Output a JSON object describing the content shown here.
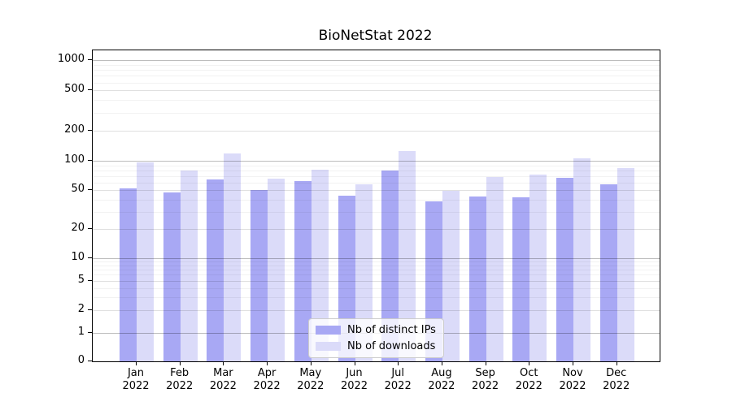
{
  "title": "BioNetStat 2022",
  "chart_data": {
    "type": "bar",
    "title": "BioNetStat 2022",
    "categories": [
      "Jan 2022",
      "Feb 2022",
      "Mar 2022",
      "Apr 2022",
      "May 2022",
      "Jun 2022",
      "Jul 2022",
      "Aug 2022",
      "Sep 2022",
      "Oct 2022",
      "Nov 2022",
      "Dec 2022"
    ],
    "series": [
      {
        "name": "Nb of distinct IPs",
        "color": "#a8a8f4",
        "values": [
          52,
          47,
          65,
          50,
          62,
          44,
          79,
          38,
          43,
          42,
          67,
          57
        ]
      },
      {
        "name": "Nb of downloads",
        "color": "#dbdbf9",
        "values": [
          97,
          79,
          118,
          66,
          81,
          57,
          126,
          49,
          68,
          72,
          106,
          85
        ]
      }
    ],
    "yscale": "symlog",
    "yticks": [
      0,
      1,
      2,
      5,
      10,
      20,
      50,
      100,
      200,
      500,
      1000
    ],
    "ytick_labels": [
      "0",
      "1",
      "2",
      "5",
      "10",
      "20",
      "50",
      "100",
      "200",
      "500",
      "1000"
    ],
    "ylim": [
      0,
      1300
    ],
    "grid": "both",
    "legend_position": "lower center",
    "colors": {
      "bar_distinct_ips": "#a8a8f4",
      "bar_downloads": "#dbdbf9",
      "grid_major": "#bdbdbd",
      "grid_minor": "#ececec",
      "axis": "#000000",
      "background": "#ffffff"
    }
  }
}
